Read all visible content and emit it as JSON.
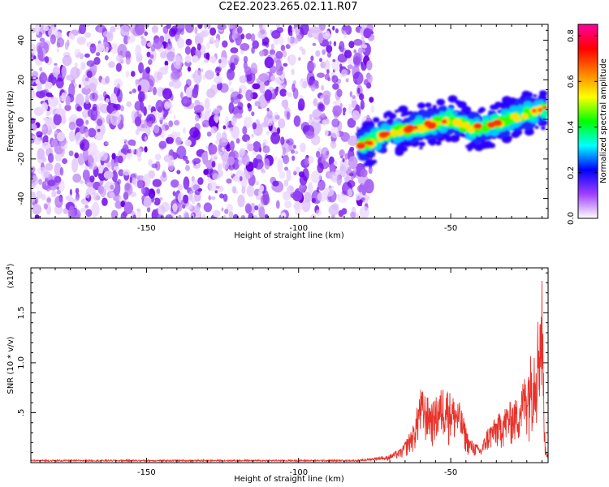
{
  "title": "C2E2.2023.265.02.11.R07",
  "chart_data": [
    {
      "type": "heatmap",
      "xlabel": "Height of straight line (km)",
      "ylabel": "Frequency (Hz)",
      "xlim": [
        -188,
        -18
      ],
      "ylim": [
        -50,
        48
      ],
      "xticks": [
        -150,
        -100,
        -50
      ],
      "yticks": [
        -40,
        -20,
        0,
        20,
        40
      ],
      "noise_region": {
        "x": [
          -188,
          -76
        ],
        "y": [
          -50,
          48
        ]
      },
      "ridge": [
        {
          "x": -80,
          "y": -14
        },
        {
          "x": -70,
          "y": -7
        },
        {
          "x": -60,
          "y": -4
        },
        {
          "x": -50,
          "y": 0
        },
        {
          "x": -43,
          "y": -5
        },
        {
          "x": -35,
          "y": -2
        },
        {
          "x": -25,
          "y": 3
        },
        {
          "x": -19,
          "y": 5
        }
      ],
      "colorbar": {
        "label": "Normalized spectral amplitude",
        "range": [
          0,
          0.85
        ],
        "ticks": [
          0.0,
          0.2,
          0.4,
          0.6,
          0.8
        ],
        "colors": [
          "#ffffff",
          "#a040ff",
          "#0000ff",
          "#00ffff",
          "#00ff00",
          "#ffff00",
          "#ff8000",
          "#ff0000",
          "#ff00a0"
        ]
      }
    },
    {
      "type": "line",
      "xlabel": "Height of straight line (km)",
      "ylabel": "SNR (10 * v/v)",
      "yscale_label": "(x10",
      "yscale_exp": "4",
      "yscale_close": ")",
      "xlim": [
        -188,
        -18
      ],
      "ylim": [
        0,
        1.95
      ],
      "xticks": [
        -150,
        -100,
        -50
      ],
      "yticks": [
        0.5,
        1.0,
        1.5
      ],
      "color": "#e8322a",
      "envelope": [
        {
          "x": -188,
          "y": 0.02
        },
        {
          "x": -80,
          "y": 0.02
        },
        {
          "x": -72,
          "y": 0.05
        },
        {
          "x": -66,
          "y": 0.15
        },
        {
          "x": -62,
          "y": 0.4
        },
        {
          "x": -60,
          "y": 0.75
        },
        {
          "x": -56,
          "y": 0.6
        },
        {
          "x": -52,
          "y": 0.8
        },
        {
          "x": -50,
          "y": 0.7
        },
        {
          "x": -47,
          "y": 0.6
        },
        {
          "x": -44,
          "y": 0.25
        },
        {
          "x": -40,
          "y": 0.15
        },
        {
          "x": -38,
          "y": 0.35
        },
        {
          "x": -34,
          "y": 0.5
        },
        {
          "x": -31,
          "y": 0.6
        },
        {
          "x": -28,
          "y": 0.65
        },
        {
          "x": -25,
          "y": 0.95
        },
        {
          "x": -22,
          "y": 1.3
        },
        {
          "x": -20,
          "y": 1.9
        },
        {
          "x": -19,
          "y": 0.2
        },
        {
          "x": -18,
          "y": 0.1
        }
      ]
    }
  ]
}
